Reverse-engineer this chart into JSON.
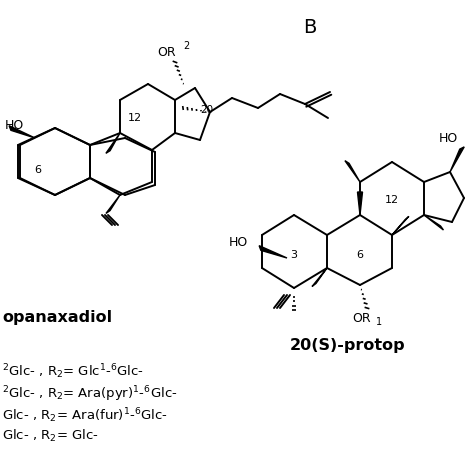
{
  "title_B": "B",
  "label_left": "opanaxadiol",
  "label_right": "20(S)-protop",
  "line1": "$^{2}$Glc- , R$_{2}$= Glc$^{1\\text{-}}$$^{6}$Glc-",
  "line2": "$^{2}$Glc- , R$_{2}$= Ara(pyr)$^{1\\text{-}}$$^{6}$Glc-",
  "line3": "Glc- , R$_{2}$= Ara(fur)$^{1\\text{-}}$$^{6}$Glc-",
  "line4": "Glc- , R$_{2}$= Glc-",
  "bg_color": "#ffffff",
  "text_color": "#000000"
}
